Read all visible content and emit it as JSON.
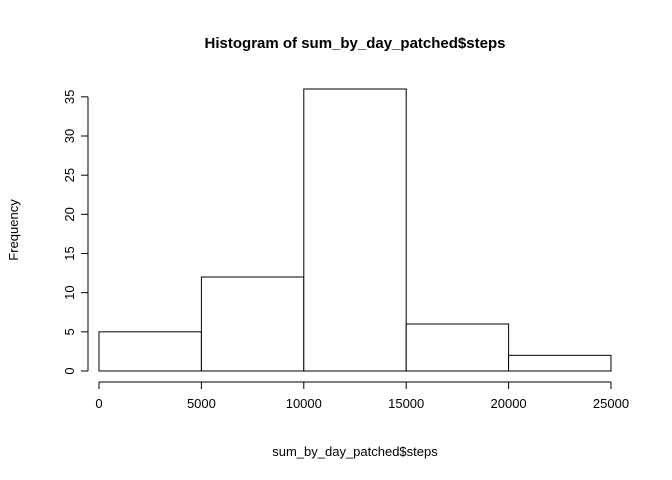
{
  "chart_data": {
    "type": "bar",
    "title": "Histogram of sum_by_day_patched$steps",
    "xlabel": "sum_by_day_patched$steps",
    "ylabel": "Frequency",
    "bins": [
      {
        "start": 0,
        "end": 5000,
        "count": 5
      },
      {
        "start": 5000,
        "end": 10000,
        "count": 12
      },
      {
        "start": 10000,
        "end": 15000,
        "count": 36
      },
      {
        "start": 15000,
        "end": 20000,
        "count": 6
      },
      {
        "start": 20000,
        "end": 25000,
        "count": 2
      }
    ],
    "x_ticks": [
      0,
      5000,
      10000,
      15000,
      20000,
      25000
    ],
    "y_ticks": [
      0,
      5,
      10,
      15,
      20,
      25,
      30,
      35
    ],
    "xlim": [
      0,
      25000
    ],
    "ylim": [
      0,
      36
    ],
    "grid": false,
    "legend": "none"
  }
}
